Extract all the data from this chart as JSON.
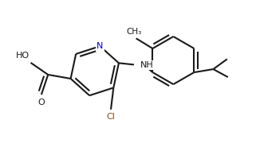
{
  "bg_color": "#ffffff",
  "line_color": "#1a1a1a",
  "n_color": "#0000cc",
  "cl_color": "#8b4513",
  "lw": 1.5,
  "figsize": [
    3.21,
    1.85
  ],
  "dpi": 100,
  "xlim": [
    0.0,
    9.5
  ],
  "ylim": [
    0.0,
    5.5
  ]
}
